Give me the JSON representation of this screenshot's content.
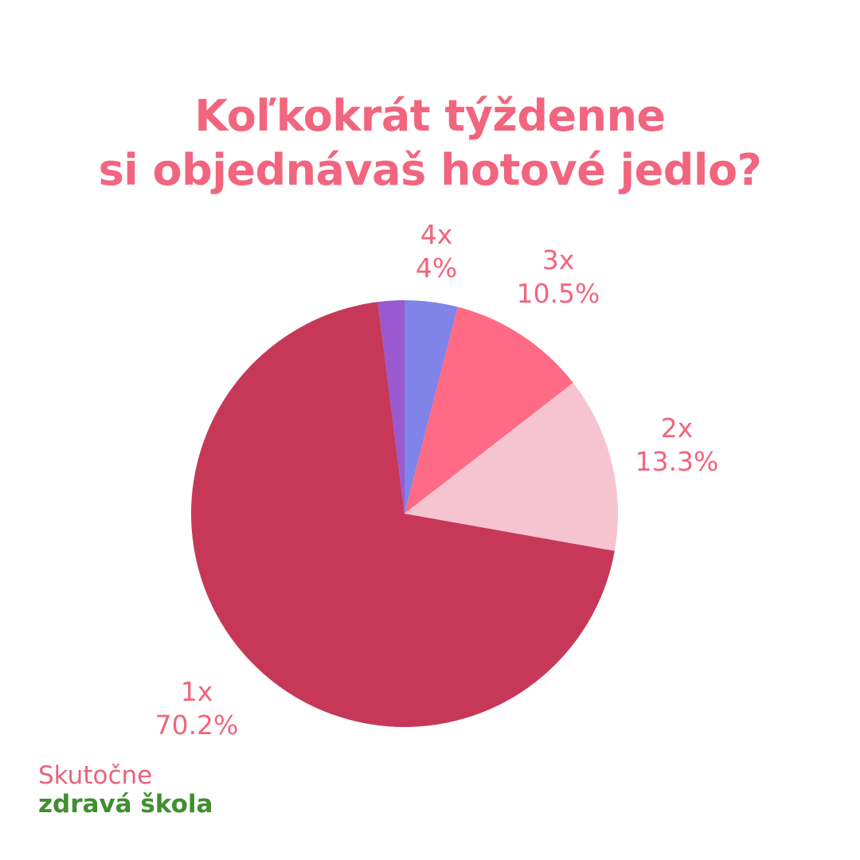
{
  "title": {
    "line1": "Koľkokrát týždenne",
    "line2": "si objednávaš hotové jedlo?"
  },
  "chart_data": {
    "type": "pie",
    "title": "Koľkokrát týždenne si objednávaš hotové jedlo?",
    "start": "12 o'clock, clockwise",
    "slices": [
      {
        "label": "4x",
        "value_label": "4%",
        "value": 4.0,
        "color": "#8083e8"
      },
      {
        "label": "3x",
        "value_label": "10.5%",
        "value": 10.5,
        "color": "#ff6b84"
      },
      {
        "label": "2x",
        "value_label": "13.3%",
        "value": 13.3,
        "color": "#f6c4d1"
      },
      {
        "label": "1x",
        "value_label": "70.2%",
        "value": 70.2,
        "color": "#c73858"
      },
      {
        "label": "",
        "value_label": "",
        "value": 2.0,
        "color": "#9b59cf"
      }
    ]
  },
  "brand": {
    "line1": "Skutočne",
    "line2": "zdravá škola"
  }
}
